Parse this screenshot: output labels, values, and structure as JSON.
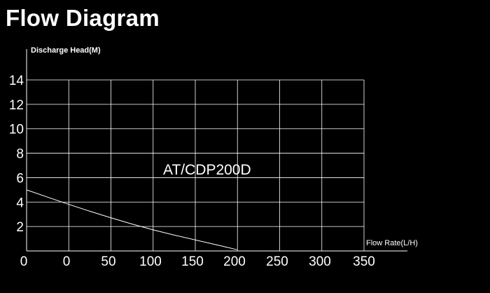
{
  "title": "Flow Diagram",
  "chart_data": {
    "type": "line",
    "ylabel": "Discharge Head(M)",
    "xlabel": "Flow Rate(L/H)",
    "x_tick_labels": [
      "0",
      "0",
      "50",
      "100",
      "150",
      "200",
      "250",
      "300",
      "350"
    ],
    "y_tick_labels": [
      "2",
      "4",
      "6",
      "8",
      "10",
      "12",
      "14"
    ],
    "ylim": [
      0,
      14
    ],
    "grid": true,
    "annotation": "AT/CDP200D",
    "series": [
      {
        "points": [
          {
            "x": -50,
            "y": 5.0
          },
          {
            "x": 0,
            "y": 3.8
          },
          {
            "x": 50,
            "y": 2.7
          },
          {
            "x": 100,
            "y": 1.7
          },
          {
            "x": 150,
            "y": 0.9
          },
          {
            "x": 200,
            "y": 0.1
          }
        ]
      }
    ]
  },
  "colors": {
    "background": "#000000",
    "foreground": "#ffffff"
  }
}
